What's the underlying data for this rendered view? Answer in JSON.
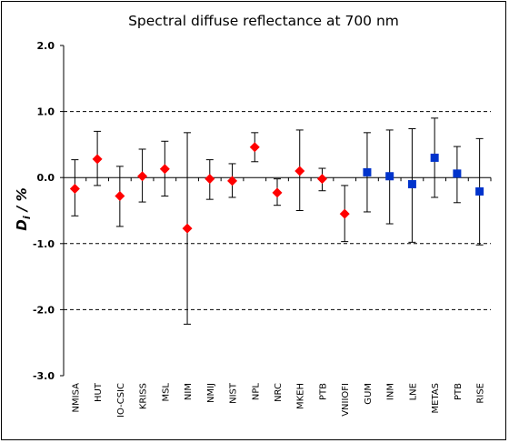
{
  "chart_data": {
    "type": "scatter",
    "title": "Spectral diffuse reflectance at 700 nm",
    "ylabel": "D_i / %",
    "ylabel_parts": {
      "main": "D",
      "sub": "i",
      "rest": " / %"
    },
    "ylim": [
      -3.0,
      2.0
    ],
    "yticks": [
      2.0,
      1.0,
      0.0,
      -1.0,
      -2.0,
      -3.0
    ],
    "ytick_labels": [
      "2.0",
      "1.0",
      "0.0",
      "-1.0",
      "-2.0",
      "-3.0"
    ],
    "dashed_gridlines": [
      1.0,
      -1.0,
      -2.0
    ],
    "categories": [
      "NMISA",
      "HUT",
      "IO-CSIC",
      "KRISS",
      "MSL",
      "NIM",
      "NMIJ",
      "NIST",
      "NPL",
      "NRC",
      "MKEH",
      "PTB",
      "VNIIOFI",
      "GUM",
      "INM",
      "LNE",
      "METAS",
      "PTB",
      "RISE"
    ],
    "series": [
      {
        "marker": "diamond",
        "color": "#ff0000",
        "values": [
          -0.17,
          0.28,
          -0.28,
          0.02,
          0.13,
          -0.77,
          -0.02,
          -0.05,
          0.46,
          -0.23,
          0.1,
          -0.02,
          -0.55,
          null,
          null,
          null,
          null,
          null,
          null
        ],
        "err_low": [
          -0.58,
          -0.12,
          -0.74,
          -0.37,
          -0.28,
          -2.22,
          -0.33,
          -0.3,
          0.24,
          -0.42,
          -0.5,
          -0.2,
          -0.97,
          null,
          null,
          null,
          null,
          null,
          null
        ],
        "err_high": [
          0.27,
          0.7,
          0.17,
          0.43,
          0.55,
          0.68,
          0.27,
          0.21,
          0.68,
          -0.02,
          0.72,
          0.14,
          -0.12,
          null,
          null,
          null,
          null,
          null,
          null
        ]
      },
      {
        "marker": "square",
        "color": "#0033cc",
        "values": [
          null,
          null,
          null,
          null,
          null,
          null,
          null,
          null,
          null,
          null,
          null,
          null,
          null,
          0.08,
          0.02,
          -0.1,
          0.3,
          0.06,
          -0.21
        ],
        "err_low": [
          null,
          null,
          null,
          null,
          null,
          null,
          null,
          null,
          null,
          null,
          null,
          null,
          null,
          -0.52,
          -0.7,
          -0.98,
          -0.3,
          -0.38,
          -1.02
        ],
        "err_high": [
          null,
          null,
          null,
          null,
          null,
          null,
          null,
          null,
          null,
          null,
          null,
          null,
          null,
          0.68,
          0.72,
          0.74,
          0.9,
          0.47,
          0.59
        ]
      }
    ],
    "colors": {
      "line": "#000000",
      "diamond": "#ff0000",
      "square": "#0033cc"
    }
  }
}
